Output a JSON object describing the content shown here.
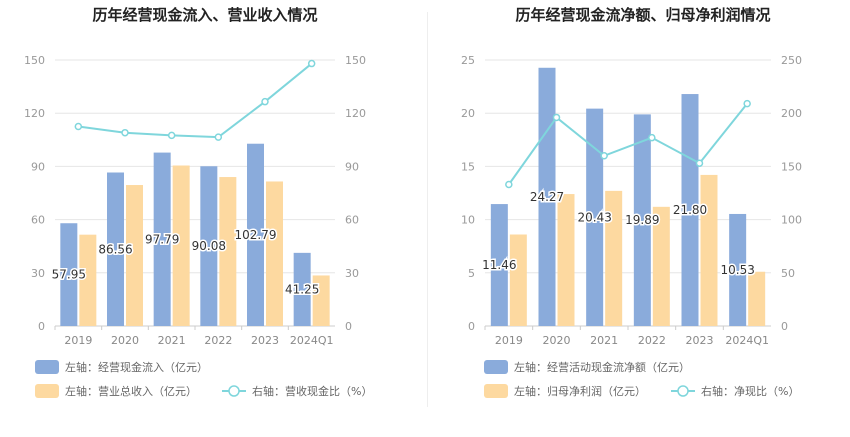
{
  "charts": [
    {
      "title": "历年经营现金流入、营业收入情况",
      "type": "bar+line",
      "categories": [
        "2019",
        "2020",
        "2021",
        "2022",
        "2023",
        "2024Q1"
      ],
      "left_axis": {
        "min": 0,
        "max": 150,
        "ticks": [
          "0",
          "30",
          "60",
          "90",
          "120",
          "150"
        ]
      },
      "right_axis": {
        "min": 0,
        "max": 150,
        "ticks": [
          "0",
          "30",
          "60",
          "90",
          "120",
          "150"
        ]
      },
      "series": [
        {
          "name": "左轴：经营现金流入（亿元）",
          "kind": "bar",
          "color": "#8aabdb",
          "values": [
            57.95,
            86.56,
            97.79,
            90.08,
            102.79,
            41.25
          ],
          "labels": [
            "57.95",
            "86.56",
            "97.79",
            "90.08",
            "102.79",
            "41.25"
          ]
        },
        {
          "name": "左轴：营业总收入（亿元）",
          "kind": "bar",
          "color": "#fdd9a0",
          "values": [
            51.5,
            79.5,
            90.5,
            84.0,
            81.5,
            28.5
          ]
        },
        {
          "name": "右轴：营收现金比（%）",
          "kind": "line",
          "color": "#7fd6dc",
          "values": [
            112.5,
            109.0,
            107.5,
            106.5,
            126.5,
            148.0
          ]
        }
      ]
    },
    {
      "title": "历年经营现金流净额、归母净利润情况",
      "type": "bar+line",
      "categories": [
        "2019",
        "2020",
        "2021",
        "2022",
        "2023",
        "2024Q1"
      ],
      "left_axis": {
        "min": 0,
        "max": 25,
        "ticks": [
          "0",
          "5",
          "10",
          "15",
          "20",
          "25"
        ]
      },
      "right_axis": {
        "min": 0,
        "max": 250,
        "ticks": [
          "0",
          "50",
          "100",
          "150",
          "200",
          "250"
        ]
      },
      "series": [
        {
          "name": "左轴：经营活动现金流净额（亿元）",
          "kind": "bar",
          "color": "#8aabdb",
          "values": [
            11.46,
            24.27,
            20.43,
            19.89,
            21.8,
            10.53
          ],
          "labels": [
            "11.46",
            "24.27",
            "20.43",
            "19.89",
            "21.80",
            "10.53"
          ]
        },
        {
          "name": "左轴：归母净利润（亿元）",
          "kind": "bar",
          "color": "#fdd9a0",
          "values": [
            8.6,
            12.4,
            12.7,
            11.2,
            14.2,
            5.1
          ]
        },
        {
          "name": "右轴：净现比（%）",
          "kind": "line",
          "color": "#7fd6dc",
          "values": [
            133,
            196,
            160,
            177,
            153,
            209
          ]
        }
      ]
    }
  ]
}
